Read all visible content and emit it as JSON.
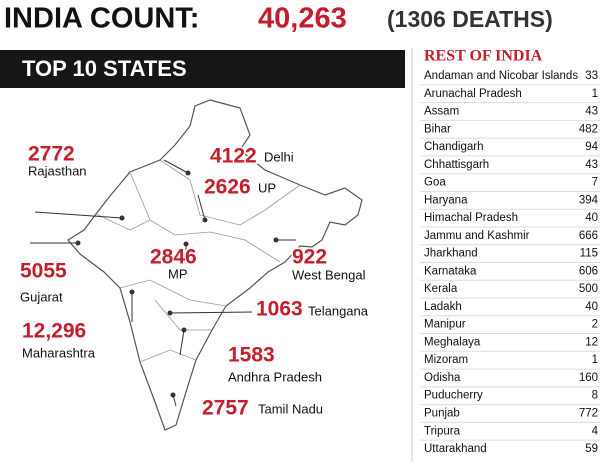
{
  "header": {
    "title": "INDIA COUNT:",
    "total": "40,263",
    "deaths": "(1306 DEATHS)"
  },
  "top_states": {
    "heading": "TOP 10 STATES",
    "states": [
      {
        "value": "2772",
        "name": "Rajasthan"
      },
      {
        "value": "4122",
        "name": "Delhi"
      },
      {
        "value": "2626",
        "name": "UP"
      },
      {
        "value": "2846",
        "name": "MP"
      },
      {
        "value": "922",
        "name": "West Bengal"
      },
      {
        "value": "5055",
        "name": "Gujarat"
      },
      {
        "value": "1063",
        "name": "Telangana"
      },
      {
        "value": "12,296",
        "name": "Maharashtra"
      },
      {
        "value": "1583",
        "name": "Andhra Pradesh"
      },
      {
        "value": "2757",
        "name": "Tamil Nadu"
      }
    ]
  },
  "rest_of_india": {
    "heading": "REST OF INDIA",
    "rows": [
      [
        "Andaman and Nicobar Islands",
        "33"
      ],
      [
        "Arunachal Pradesh",
        "1"
      ],
      [
        "Assam",
        "43"
      ],
      [
        "Bihar",
        "482"
      ],
      [
        "Chandigarh",
        "94"
      ],
      [
        "Chhattisgarh",
        "43"
      ],
      [
        "Goa",
        "7"
      ],
      [
        "Haryana",
        "394"
      ],
      [
        "Himachal Pradesh",
        "40"
      ],
      [
        "Jammu and Kashmir",
        "666"
      ],
      [
        "Jharkhand",
        "115"
      ],
      [
        "Karnataka",
        "606"
      ],
      [
        "Kerala",
        "500"
      ],
      [
        "Ladakh",
        "40"
      ],
      [
        "Manipur",
        "2"
      ],
      [
        "Meghalaya",
        "12"
      ],
      [
        "Mizoram",
        "1"
      ],
      [
        "Odisha",
        "160"
      ],
      [
        "Puducherry",
        "8"
      ],
      [
        "Punjab",
        "772"
      ],
      [
        "Tripura",
        "4"
      ],
      [
        "Uttarakhand",
        "59"
      ]
    ]
  }
}
